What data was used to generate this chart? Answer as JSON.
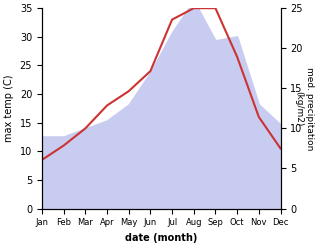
{
  "months": [
    "Jan",
    "Feb",
    "Mar",
    "Apr",
    "May",
    "Jun",
    "Jul",
    "Aug",
    "Sep",
    "Oct",
    "Nov",
    "Dec"
  ],
  "month_positions": [
    0,
    1,
    2,
    3,
    4,
    5,
    6,
    7,
    8,
    9,
    10,
    11
  ],
  "max_temp": [
    8.5,
    11.0,
    14.0,
    18.0,
    20.5,
    24.0,
    33.0,
    35.0,
    35.0,
    26.5,
    16.0,
    10.5
  ],
  "precipitation": [
    9.0,
    9.0,
    10.0,
    11.0,
    13.0,
    17.0,
    22.0,
    26.0,
    21.0,
    21.5,
    13.0,
    10.5
  ],
  "temp_color": "#cc3333",
  "precip_fill_color": "#c8ccf0",
  "ylabel_left": "max temp (C)",
  "ylabel_right": "med. precipitation\n(kg/m2)",
  "xlabel": "date (month)",
  "ylim_left": [
    0,
    35
  ],
  "ylim_right": [
    0,
    25
  ],
  "yticks_left": [
    0,
    5,
    10,
    15,
    20,
    25,
    30,
    35
  ],
  "yticks_right": [
    0,
    5,
    10,
    15,
    20,
    25
  ],
  "background_color": "#ffffff"
}
